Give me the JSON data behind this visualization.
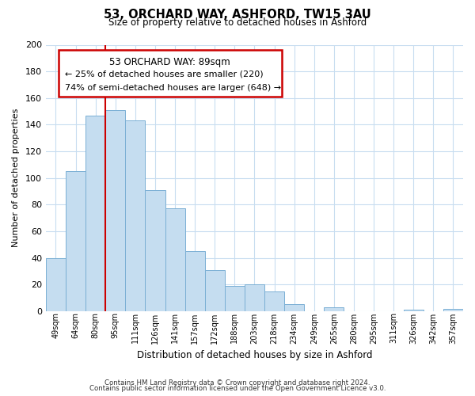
{
  "title": "53, ORCHARD WAY, ASHFORD, TW15 3AU",
  "subtitle": "Size of property relative to detached houses in Ashford",
  "xlabel": "Distribution of detached houses by size in Ashford",
  "ylabel": "Number of detached properties",
  "categories": [
    "49sqm",
    "64sqm",
    "80sqm",
    "95sqm",
    "111sqm",
    "126sqm",
    "141sqm",
    "157sqm",
    "172sqm",
    "188sqm",
    "203sqm",
    "218sqm",
    "234sqm",
    "249sqm",
    "265sqm",
    "280sqm",
    "295sqm",
    "311sqm",
    "326sqm",
    "342sqm",
    "357sqm"
  ],
  "values": [
    40,
    105,
    147,
    151,
    143,
    91,
    77,
    45,
    31,
    19,
    20,
    15,
    5,
    0,
    3,
    0,
    0,
    0,
    1,
    0,
    2
  ],
  "bar_color": "#c5ddf0",
  "bar_edge_color": "#7aafd4",
  "vline_color": "#cc0000",
  "vline_x": 2.5,
  "annotation_title": "53 ORCHARD WAY: 89sqm",
  "annotation_line1": "← 25% of detached houses are smaller (220)",
  "annotation_line2": "74% of semi-detached houses are larger (648) →",
  "annotation_box_edge_color": "#cc0000",
  "annotation_box_face_color": "#ffffff",
  "ylim": [
    0,
    200
  ],
  "yticks": [
    0,
    20,
    40,
    60,
    80,
    100,
    120,
    140,
    160,
    180,
    200
  ],
  "footer_line1": "Contains HM Land Registry data © Crown copyright and database right 2024.",
  "footer_line2": "Contains public sector information licensed under the Open Government Licence v3.0.",
  "bg_color": "#ffffff",
  "grid_color": "#c8ddf0"
}
